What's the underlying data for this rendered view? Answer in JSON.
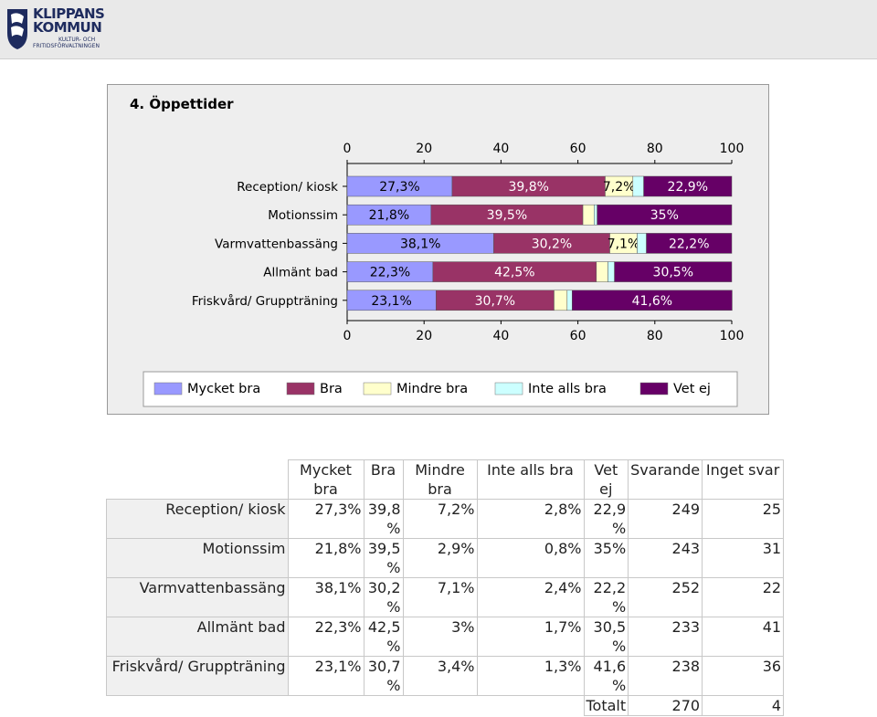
{
  "logo": {
    "line1": "KLIPPANS",
    "line2": "KOMMUN",
    "sub1": "KULTUR- OCH",
    "sub2": "FRITIDSFÖRVALTNINGEN"
  },
  "chart_title": "4. Öppettider",
  "colors": {
    "mycket_bra": "#9999ff",
    "bra": "#993366",
    "mindre_bra": "#ffffcc",
    "inte_alls_bra": "#ccffff",
    "vet_ej": "#660066"
  },
  "chart_data": {
    "type": "bar",
    "orientation": "horizontal",
    "stacked": true,
    "title": "4. Öppettider",
    "xlim": [
      0,
      100
    ],
    "ticks": [
      "0",
      "20",
      "40",
      "60",
      "80",
      "100"
    ],
    "categories": [
      "Reception/ kiosk",
      "Motionssim",
      "Varmvattenbassäng",
      "Allmänt bad",
      "Friskvård/ Gruppträning"
    ],
    "series": [
      {
        "name": "Mycket bra",
        "values": [
          27.3,
          21.8,
          38.1,
          22.3,
          23.1
        ],
        "labels": [
          "27,3%",
          "21,8%",
          "38,1%",
          "22,3%",
          "23,1%"
        ]
      },
      {
        "name": "Bra",
        "values": [
          39.8,
          39.5,
          30.2,
          42.5,
          30.7
        ],
        "labels": [
          "39,8%",
          "39,5%",
          "30,2%",
          "42,5%",
          "30,7%"
        ]
      },
      {
        "name": "Mindre bra",
        "values": [
          7.2,
          2.9,
          7.1,
          3.0,
          3.4
        ],
        "labels": [
          "7,2%",
          "",
          "7,1%",
          "",
          ""
        ]
      },
      {
        "name": "Inte alls bra",
        "values": [
          2.8,
          0.8,
          2.4,
          1.7,
          1.3
        ],
        "labels": [
          "",
          "",
          "",
          "",
          ""
        ]
      },
      {
        "name": "Vet ej",
        "values": [
          22.9,
          35.0,
          22.2,
          30.5,
          41.6
        ],
        "labels": [
          "22,9%",
          "35%",
          "22,2%",
          "30,5%",
          "41,6%"
        ]
      }
    ],
    "legend_position": "bottom",
    "grid": false
  },
  "table": {
    "headers": [
      "Mycket bra",
      "Bra",
      "Mindre bra",
      "Inte alls bra",
      "Vet ej",
      "Svarande",
      "Inget svar"
    ],
    "rows": [
      {
        "label": "Reception/ kiosk",
        "cells": [
          "27,3%",
          "39,8 %",
          "7,2%",
          "2,8%",
          "22,9 %",
          "249",
          "25"
        ]
      },
      {
        "label": "Motionssim",
        "cells": [
          "21,8%",
          "39,5 %",
          "2,9%",
          "0,8%",
          "35%",
          "243",
          "31"
        ]
      },
      {
        "label": "Varmvattenbassäng",
        "cells": [
          "38,1%",
          "30,2 %",
          "7,1%",
          "2,4%",
          "22,2 %",
          "252",
          "22"
        ]
      },
      {
        "label": "Allmänt bad",
        "cells": [
          "22,3%",
          "42,5 %",
          "3%",
          "1,7%",
          "30,5 %",
          "233",
          "41"
        ]
      },
      {
        "label": "Friskvård/ Gruppträning",
        "cells": [
          "23,1%",
          "30,7 %",
          "3,4%",
          "1,3%",
          "41,6 %",
          "238",
          "36"
        ]
      }
    ],
    "total_label": "Totalt",
    "total_svarande": "270",
    "total_inget": "4"
  }
}
